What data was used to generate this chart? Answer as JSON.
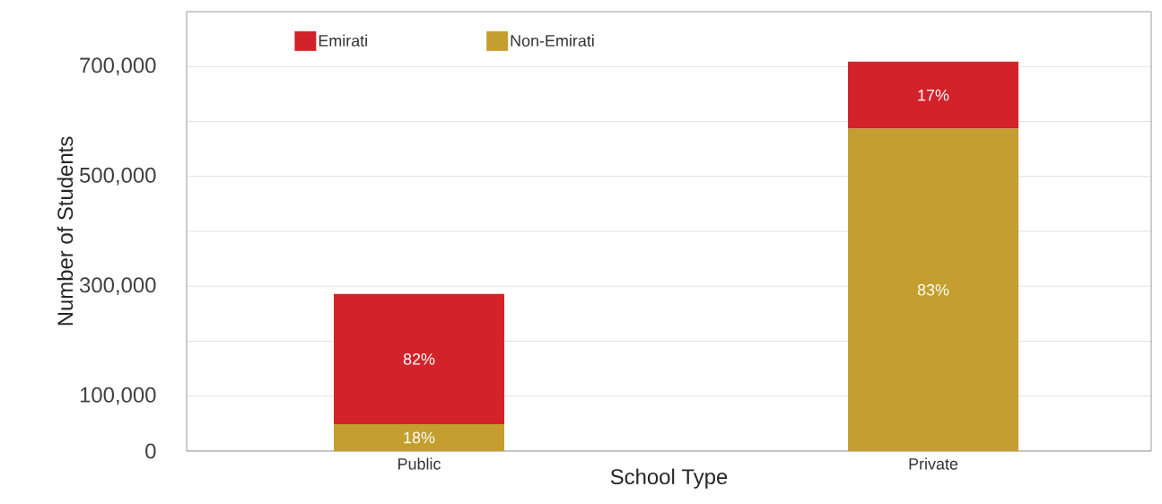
{
  "chart_data": {
    "type": "bar",
    "stacked": true,
    "xlabel": "School Type",
    "ylabel": "Number of Students",
    "categories": [
      "Public",
      "Private"
    ],
    "series": [
      {
        "name": "Non-Emirati",
        "color": "#c49f2f",
        "values": [
          49000,
          587000
        ]
      },
      {
        "name": "Emirati",
        "color": "#d2232a",
        "values": [
          237000,
          122000
        ]
      }
    ],
    "annotations": [
      "18%",
      "82%",
      "83%",
      "17%"
    ],
    "ylim": [
      0,
      800000
    ],
    "yticks": [
      0,
      {
        "value": 100000,
        "label": "100,000"
      },
      {
        "value": 200000,
        "label": null
      },
      {
        "value": 300000,
        "label": "300,000"
      },
      {
        "value": 400000,
        "label": null
      },
      {
        "value": 500000,
        "label": "500,000"
      },
      {
        "value": 600000,
        "label": null
      },
      {
        "value": 700000,
        "label": "700,000"
      }
    ],
    "grid": "y",
    "legend": "top left"
  }
}
